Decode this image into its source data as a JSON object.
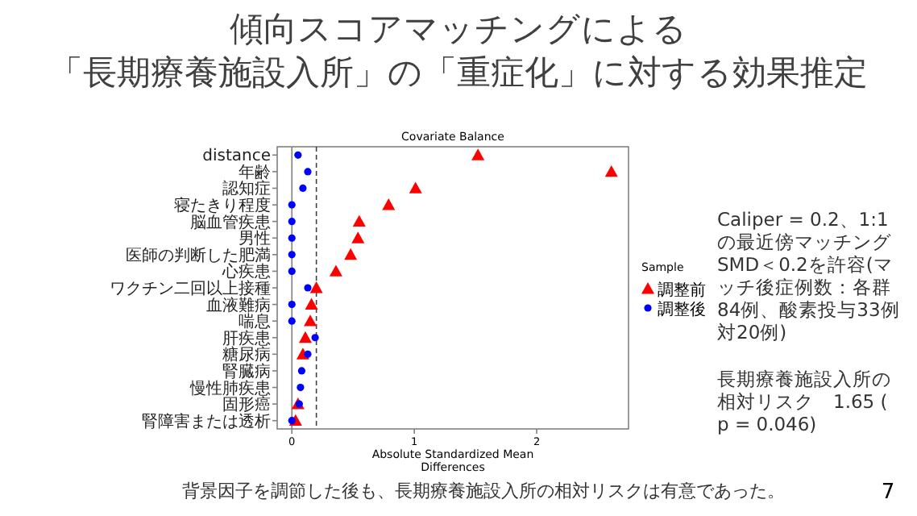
{
  "chart_data": {
    "type": "scatter",
    "title": "傾向スコアマッチングによる「長期療養施設入所」の「重症化」に対する効果推定",
    "subtitle": "Covariate Balance",
    "xlabel": "Absolute Standardized Mean\nDifferences",
    "legend_title": "Sample",
    "orientation": "horizontal",
    "categories": [
      "distance",
      "年齢",
      "認知症",
      "寝たきり程度",
      "脳血管疾患",
      "男性",
      "医師の判断した肥満",
      "心疾患",
      "ワクチン二回以上接種",
      "血液難病",
      "喘息",
      "肝疾患",
      "糖尿病",
      "腎臓病",
      "慢性肺疾患",
      "固形癌",
      "腎障害または透析"
    ],
    "series": [
      {
        "name": "調整前",
        "color": "#ff0000",
        "marker": "triangle",
        "values": [
          1.52,
          2.61,
          1.01,
          0.79,
          0.55,
          0.54,
          0.48,
          0.36,
          0.2,
          0.16,
          0.15,
          0.11,
          0.09,
          null,
          null,
          0.05,
          0.03
        ]
      },
      {
        "name": "調整後",
        "color": "#0000ff",
        "marker": "circle",
        "values": [
          0.05,
          0.13,
          0.09,
          0,
          0,
          0,
          0,
          0,
          0.13,
          0,
          0,
          0.19,
          0.13,
          0.08,
          0.07,
          0.06,
          0
        ]
      }
    ],
    "xlim": [
      -0.12,
      2.75
    ],
    "xticks": [
      0,
      1,
      2
    ],
    "legend": "right",
    "grid": false,
    "ref_lines": [
      {
        "axis": "x",
        "value": 0,
        "color": "#808080",
        "line_style": "solid"
      },
      {
        "axis": "x",
        "value": 0.2,
        "color": "#404040",
        "line_style": "dashed"
      }
    ],
    "annotations": [
      "Caliper = 0.2、1:1の最近傍マッチングSMD＜0.2を許容(マッチ後症例数：各群84例、酸素投与33例対20例)",
      "長期療養施設入所の相対リスク　1.65 (p = 0.046)",
      "背景因子を調節した後も、長期療養施設入所の相対リスクは有意であった。",
      "7"
    ]
  }
}
